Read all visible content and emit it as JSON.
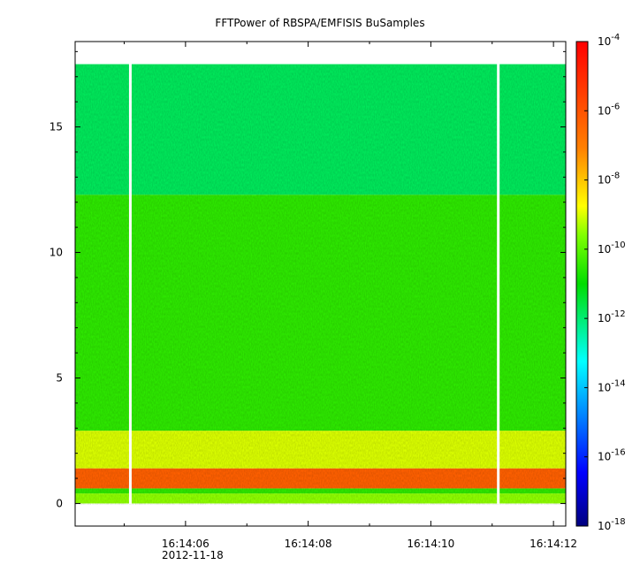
{
  "chart_data": {
    "type": "heatmap",
    "title": "FFTPower of RBSPA/EMFISIS  BuSamples",
    "xlabel": "",
    "ylabel": "",
    "x_ticks": [
      {
        "time": "16:14:06",
        "date": "2012-11-18"
      },
      {
        "time": "16:14:08",
        "date": ""
      },
      {
        "time": "16:14:10",
        "date": ""
      },
      {
        "time": "16:14:12",
        "date": ""
      }
    ],
    "x_range": [
      "16:14:04.2",
      "16:14:12.2"
    ],
    "y_ticks": [
      "0",
      "5",
      "10",
      "15"
    ],
    "y_range": [
      -0.9,
      18.4
    ],
    "colorbar": {
      "scale": "log",
      "range": [
        1e-18,
        0.0001
      ],
      "ticks": [
        {
          "base": "10",
          "exp": "-4"
        },
        {
          "base": "10",
          "exp": "-6"
        },
        {
          "base": "10",
          "exp": "-8"
        },
        {
          "base": "10",
          "exp": "-10"
        },
        {
          "base": "10",
          "exp": "-12"
        },
        {
          "base": "10",
          "exp": "-14"
        },
        {
          "base": "10",
          "exp": "-16"
        },
        {
          "base": "10",
          "exp": "-18"
        }
      ]
    },
    "data_extent": {
      "y_min": 0,
      "y_max": 17.5
    },
    "data_gaps": [
      "16:14:05.1",
      "16:14:11.1"
    ],
    "bands": [
      {
        "y_from": 0.0,
        "y_to": 0.4,
        "log10_power": -9.5
      },
      {
        "y_from": 0.4,
        "y_to": 0.6,
        "log10_power": -10.5
      },
      {
        "y_from": 0.6,
        "y_to": 1.4,
        "log10_power": -6.3
      },
      {
        "y_from": 1.4,
        "y_to": 2.9,
        "log10_power": -9.0
      },
      {
        "y_from": 2.9,
        "y_to": 12.3,
        "log10_power": -10.5
      },
      {
        "y_from": 12.3,
        "y_to": 17.5,
        "log10_power": -11.8
      }
    ],
    "grid": false,
    "legend": "colorbar-right"
  }
}
